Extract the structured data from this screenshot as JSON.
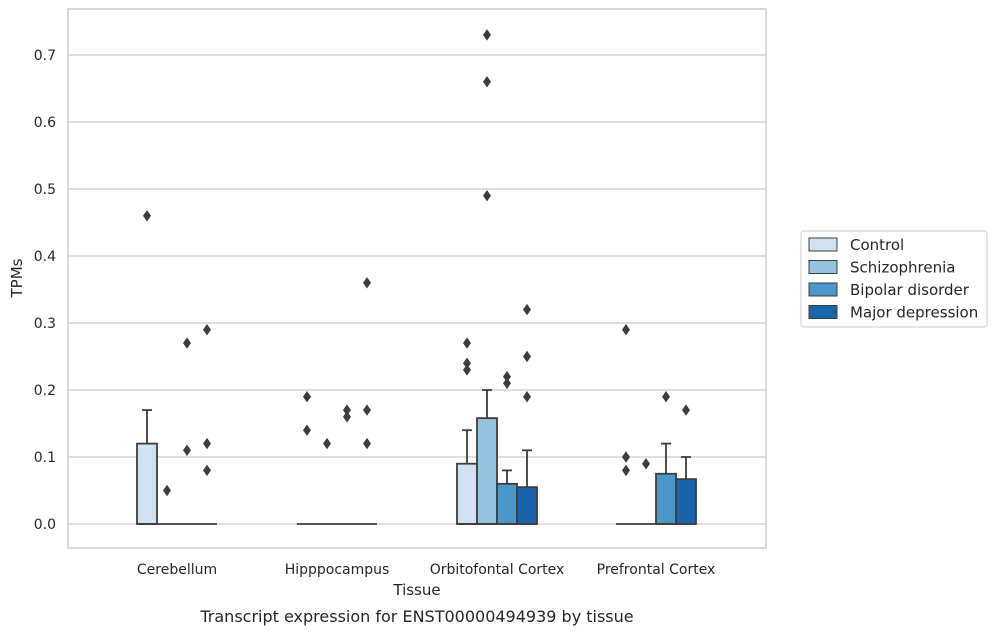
{
  "caption": "Transcript expression for ENST00000494939 by tissue",
  "chart_data": {
    "type": "box",
    "xlabel": "Tissue",
    "ylabel": "TPMs",
    "ylim": [
      -0.035,
      0.77
    ],
    "yticks": [
      0.0,
      0.1,
      0.2,
      0.3,
      0.4,
      0.5,
      0.6,
      0.7
    ],
    "ytick_labels": [
      "0.0",
      "0.1",
      "0.2",
      "0.3",
      "0.4",
      "0.5",
      "0.6",
      "0.7"
    ],
    "grid": "horizontal",
    "legend_position": "right",
    "categories": [
      "Cerebellum",
      "Hipppocampus",
      "Orbitofontal Cortex",
      "Prefrontal Cortex"
    ],
    "series": [
      {
        "name": "Control",
        "color": "#d0e1f2",
        "boxes": [
          {
            "q1": 0.0,
            "median": 0.0,
            "q3": 0.12,
            "whisker_low": 0.0,
            "whisker_high": 0.17,
            "outliers": [
              0.46
            ]
          },
          {
            "q1": 0.0,
            "median": 0.0,
            "q3": 0.0,
            "whisker_low": 0.0,
            "whisker_high": 0.0,
            "outliers": [
              0.14,
              0.19
            ]
          },
          {
            "q1": 0.0,
            "median": 0.0,
            "q3": 0.09,
            "whisker_low": 0.0,
            "whisker_high": 0.14,
            "outliers": [
              0.23,
              0.24,
              0.27
            ]
          },
          {
            "q1": 0.0,
            "median": 0.0,
            "q3": 0.0,
            "whisker_low": 0.0,
            "whisker_high": 0.0,
            "outliers": [
              0.08,
              0.1,
              0.29
            ]
          }
        ]
      },
      {
        "name": "Schizophrenia",
        "color": "#94c4df",
        "boxes": [
          {
            "q1": 0.0,
            "median": 0.0,
            "q3": 0.0,
            "whisker_low": 0.0,
            "whisker_high": 0.0,
            "outliers": [
              0.05
            ]
          },
          {
            "q1": 0.0,
            "median": 0.0,
            "q3": 0.0,
            "whisker_low": 0.0,
            "whisker_high": 0.0,
            "outliers": [
              0.12
            ]
          },
          {
            "q1": 0.0,
            "median": 0.0,
            "q3": 0.158,
            "whisker_low": 0.0,
            "whisker_high": 0.2,
            "outliers": [
              0.49,
              0.66,
              0.73
            ]
          },
          {
            "q1": 0.0,
            "median": 0.0,
            "q3": 0.0,
            "whisker_low": 0.0,
            "whisker_high": 0.0,
            "outliers": [
              0.09
            ]
          }
        ]
      },
      {
        "name": "Bipolar disorder",
        "color": "#4a98c9",
        "boxes": [
          {
            "q1": 0.0,
            "median": 0.0,
            "q3": 0.0,
            "whisker_low": 0.0,
            "whisker_high": 0.0,
            "outliers": [
              0.11,
              0.27
            ]
          },
          {
            "q1": 0.0,
            "median": 0.0,
            "q3": 0.0,
            "whisker_low": 0.0,
            "whisker_high": 0.0,
            "outliers": [
              0.16,
              0.17
            ]
          },
          {
            "q1": 0.0,
            "median": 0.0,
            "q3": 0.06,
            "whisker_low": 0.0,
            "whisker_high": 0.08,
            "outliers": [
              0.21,
              0.22
            ]
          },
          {
            "q1": 0.0,
            "median": 0.0,
            "q3": 0.075,
            "whisker_low": 0.0,
            "whisker_high": 0.12,
            "outliers": [
              0.19
            ]
          }
        ]
      },
      {
        "name": "Major depression",
        "color": "#1764ab",
        "boxes": [
          {
            "q1": 0.0,
            "median": 0.0,
            "q3": 0.0,
            "whisker_low": 0.0,
            "whisker_high": 0.0,
            "outliers": [
              0.08,
              0.12,
              0.29
            ]
          },
          {
            "q1": 0.0,
            "median": 0.0,
            "q3": 0.0,
            "whisker_low": 0.0,
            "whisker_high": 0.0,
            "outliers": [
              0.12,
              0.17,
              0.36
            ]
          },
          {
            "q1": 0.0,
            "median": 0.0,
            "q3": 0.055,
            "whisker_low": 0.0,
            "whisker_high": 0.11,
            "outliers": [
              0.19,
              0.25,
              0.32
            ]
          },
          {
            "q1": 0.0,
            "median": 0.0,
            "q3": 0.067,
            "whisker_low": 0.0,
            "whisker_high": 0.1,
            "outliers": [
              0.17
            ]
          }
        ]
      }
    ]
  }
}
